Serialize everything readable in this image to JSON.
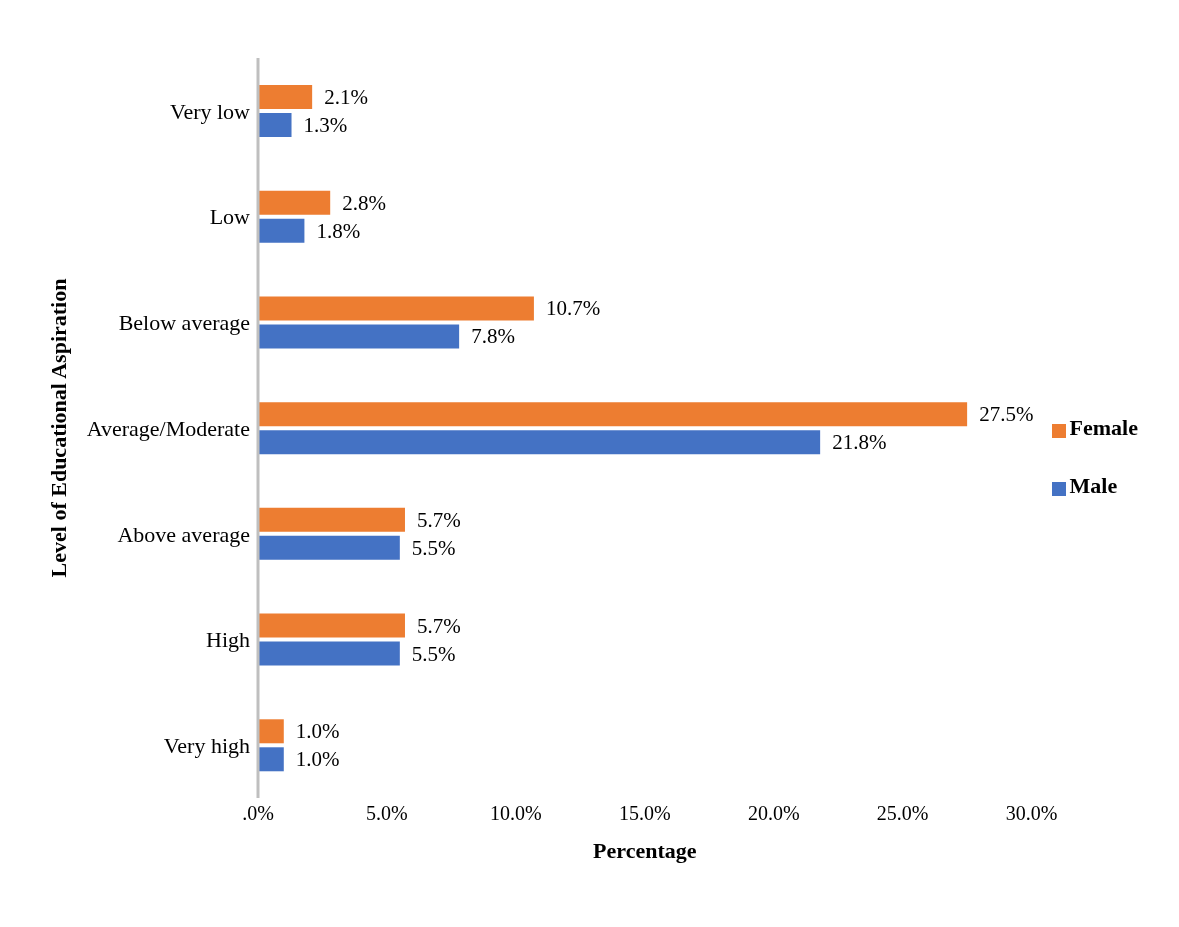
{
  "chart_data": {
    "type": "bar",
    "orientation": "horizontal",
    "xlabel": "Percentage",
    "ylabel": "Level of Educational Aspiration",
    "categories": [
      "Very low",
      "Low",
      "Below average",
      "Average/Moderate",
      "Above average",
      "High",
      "Very high"
    ],
    "series": [
      {
        "name": "Female",
        "color": "#ed7d31",
        "values": [
          2.1,
          2.8,
          10.7,
          27.5,
          5.7,
          5.7,
          1.0
        ],
        "value_labels": [
          "2.1%",
          "2.8%",
          "10.7%",
          "27.5%",
          "5.7%",
          "5.7%",
          "1.0%"
        ]
      },
      {
        "name": "Male",
        "color": "#4472c4",
        "values": [
          1.3,
          1.8,
          7.8,
          21.8,
          5.5,
          5.5,
          1.0
        ],
        "value_labels": [
          "1.3%",
          "1.8%",
          "7.8%",
          "21.8%",
          "5.5%",
          "5.5%",
          "1.0%"
        ]
      }
    ],
    "xlim": [
      0,
      30
    ],
    "xticks": [
      {
        "value": 0,
        "label": ".0%"
      },
      {
        "value": 5,
        "label": "5.0%"
      },
      {
        "value": 10,
        "label": "10.0%"
      },
      {
        "value": 15,
        "label": "15.0%"
      },
      {
        "value": 20,
        "label": "20.0%"
      },
      {
        "value": 25,
        "label": "25.0%"
      },
      {
        "value": 30,
        "label": "30.0%"
      }
    ],
    "grid": false,
    "legend": "right"
  }
}
